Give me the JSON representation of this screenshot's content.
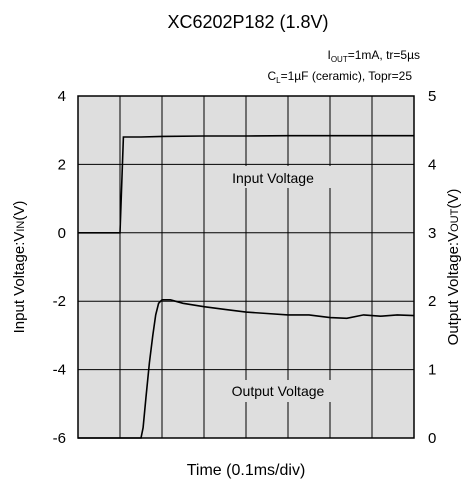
{
  "chart_data": {
    "type": "line",
    "title": "XC6202P182 (1.8V)",
    "conditions": {
      "line1": {
        "label_main": "I",
        "label_sub": "OUT",
        "rest": "=1mA, tr=5µs"
      },
      "line2": {
        "label_main": "C",
        "label_sub": "L",
        "rest": "=1µF (ceramic), Topr=25"
      }
    },
    "xlabel": "Time (0.1ms/div)",
    "x_divisions": 8,
    "xlim": [
      0,
      8
    ],
    "ylabel_left": {
      "main": "Input Voltage:V",
      "sub": "IN",
      "unit": "(V)"
    },
    "ylabel_right": {
      "main": "Output Voltage:V",
      "sub": "OUT",
      "unit": "(V)"
    },
    "y_left": {
      "range": [
        -6,
        4
      ],
      "ticks": [
        "4",
        "2",
        "0",
        "-2",
        "-4",
        "-6"
      ]
    },
    "y_right": {
      "range": [
        0,
        5
      ],
      "ticks": [
        "5",
        "4",
        "3",
        "2",
        "1",
        "0"
      ]
    },
    "grid": true,
    "series": [
      {
        "name": "Input Voltage",
        "axis": "left",
        "x": [
          0,
          1.0,
          1.08,
          1.5,
          2.0,
          3.0,
          4.0,
          5.0,
          6.0,
          7.0,
          8.0
        ],
        "y": [
          0,
          0,
          2.8,
          2.8,
          2.82,
          2.83,
          2.83,
          2.84,
          2.84,
          2.84,
          2.84
        ]
      },
      {
        "name": "Output Voltage",
        "axis": "right",
        "x": [
          0,
          1.5,
          1.55,
          1.62,
          1.7,
          1.78,
          1.85,
          1.92,
          2.0,
          2.2,
          2.5,
          3.0,
          3.5,
          4.0,
          4.5,
          5.0,
          5.5,
          6.0,
          6.4,
          6.8,
          7.2,
          7.6,
          8.0
        ],
        "y": [
          0,
          0,
          0.15,
          0.6,
          1.1,
          1.5,
          1.8,
          1.97,
          2.02,
          2.02,
          1.97,
          1.92,
          1.88,
          1.84,
          1.82,
          1.8,
          1.8,
          1.76,
          1.75,
          1.8,
          1.78,
          1.8,
          1.79
        ]
      }
    ]
  }
}
